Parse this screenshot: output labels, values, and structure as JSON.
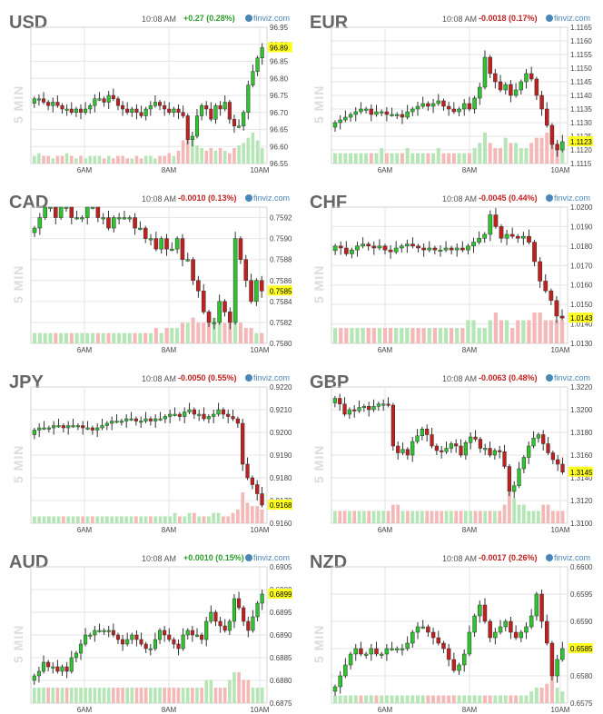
{
  "vertical_label": "5 MIN",
  "time": "10:08 AM",
  "watermark": "finviz.com",
  "colors": {
    "up": "#2ec42e",
    "down": "#c21f1f",
    "vol_up": "#b5e6b5",
    "vol_down": "#f5b8b8",
    "grid": "#e6e6e6",
    "highlight": "#ffff22"
  },
  "chart_data": [
    {
      "type": "candlestick",
      "symbol": "USD",
      "change": "+0.27 (0.28%)",
      "direction": "up",
      "ylim": [
        96.55,
        96.95
      ],
      "yticks": [
        "96.55",
        "96.60",
        "96.65",
        "96.70",
        "96.75",
        "96.80",
        "96.85",
        "96.90",
        "96.95"
      ],
      "xticks": [
        "6AM",
        "8AM",
        "10AM"
      ],
      "last": "96.89",
      "close": [
        96.74,
        96.74,
        96.73,
        96.72,
        96.73,
        96.72,
        96.71,
        96.71,
        96.7,
        96.71,
        96.7,
        96.71,
        96.72,
        96.74,
        96.74,
        96.73,
        96.75,
        96.74,
        96.72,
        96.71,
        96.7,
        96.71,
        96.7,
        96.69,
        96.71,
        96.72,
        96.73,
        96.72,
        96.71,
        96.7,
        96.71,
        96.7,
        96.69,
        96.62,
        96.63,
        96.69,
        96.72,
        96.71,
        96.68,
        96.72,
        96.71,
        96.73,
        96.68,
        96.66,
        96.66,
        96.7,
        96.78,
        96.82,
        96.86,
        96.89
      ],
      "volume": [
        3,
        4,
        3,
        3,
        2,
        3,
        3,
        4,
        3,
        2,
        3,
        2,
        3,
        3,
        3,
        2,
        3,
        2,
        3,
        3,
        2,
        2,
        3,
        2,
        3,
        3,
        2,
        3,
        3,
        4,
        3,
        5,
        9,
        11,
        10,
        7,
        6,
        5,
        6,
        5,
        6,
        5,
        4,
        6,
        7,
        8,
        10,
        12,
        9,
        6
      ]
    },
    {
      "type": "candlestick",
      "symbol": "EUR",
      "change": "-0.0018 (0.17%)",
      "direction": "down",
      "ylim": [
        1.1115,
        1.1165
      ],
      "yticks": [
        "1.1115",
        "1.1120",
        "1.1125",
        "1.1130",
        "1.1135",
        "1.1140",
        "1.1145",
        "1.1150",
        "1.1155",
        "1.1160",
        "1.1165"
      ],
      "xticks": [
        "6AM",
        "8AM",
        "10AM"
      ],
      "last": "1.1123",
      "close": [
        1.113,
        1.1131,
        1.1132,
        1.1133,
        1.1134,
        1.1135,
        1.1135,
        1.1133,
        1.1134,
        1.1134,
        1.1133,
        1.1133,
        1.1133,
        1.1132,
        1.1134,
        1.1135,
        1.1136,
        1.1137,
        1.1136,
        1.1137,
        1.1138,
        1.1136,
        1.1135,
        1.1134,
        1.1135,
        1.1137,
        1.1135,
        1.1139,
        1.1143,
        1.1154,
        1.1148,
        1.1145,
        1.1142,
        1.1144,
        1.114,
        1.1142,
        1.1145,
        1.1148,
        1.1146,
        1.114,
        1.1135,
        1.1129,
        1.1122,
        1.112,
        1.1123
      ],
      "volume": [
        2,
        2,
        2,
        2,
        2,
        2,
        2,
        2,
        2,
        3,
        2,
        2,
        2,
        2,
        3,
        2,
        2,
        2,
        2,
        2,
        3,
        2,
        2,
        2,
        2,
        2,
        2,
        3,
        4,
        6,
        4,
        3,
        3,
        5,
        4,
        4,
        3,
        3,
        4,
        5,
        5,
        6,
        6,
        4,
        3
      ]
    },
    {
      "type": "candlestick",
      "symbol": "CAD",
      "change": "-0.0010 (0.13%)",
      "direction": "down",
      "ylim": [
        0.758,
        0.7593
      ],
      "yticks": [
        "0.7580",
        "0.7582",
        "0.7584",
        "0.7586",
        "0.7588",
        "0.7590",
        "0.7592"
      ],
      "xticks": [
        "6AM",
        "8AM",
        "10AM"
      ],
      "last": "0.7585",
      "close": [
        0.7591,
        0.7592,
        0.7593,
        0.7593,
        0.7592,
        0.7593,
        0.7593,
        0.7592,
        0.7592,
        0.7592,
        0.7593,
        0.7593,
        0.7592,
        0.7592,
        0.7591,
        0.7592,
        0.7592,
        0.7592,
        0.7592,
        0.7591,
        0.7591,
        0.759,
        0.759,
        0.7589,
        0.759,
        0.7589,
        0.7589,
        0.759,
        0.7588,
        0.7588,
        0.7586,
        0.7585,
        0.7583,
        0.7582,
        0.7582,
        0.7584,
        0.7583,
        0.7582,
        0.759,
        0.7588,
        0.7586,
        0.7584,
        0.7586,
        0.7585
      ],
      "volume": [
        2,
        2,
        2,
        2,
        2,
        2,
        2,
        2,
        2,
        2,
        2,
        2,
        2,
        2,
        2,
        2,
        2,
        2,
        2,
        2,
        2,
        2,
        2,
        3,
        2,
        3,
        3,
        3,
        4,
        4,
        5,
        4,
        4,
        5,
        5,
        4,
        4,
        5,
        6,
        4,
        3,
        3,
        2,
        2
      ]
    },
    {
      "type": "candlestick",
      "symbol": "CHF",
      "change": "-0.0045 (0.44%)",
      "direction": "down",
      "ylim": [
        1.013,
        1.02
      ],
      "yticks": [
        "1.0130",
        "1.0140",
        "1.0150",
        "1.0160",
        "1.0170",
        "1.0180",
        "1.0190",
        "1.0200"
      ],
      "xticks": [
        "6AM",
        "8AM",
        "10AM"
      ],
      "last": "1.0143",
      "close": [
        1.018,
        1.0179,
        1.0176,
        1.0178,
        1.018,
        1.0181,
        1.018,
        1.0179,
        1.018,
        1.0178,
        1.0177,
        1.0179,
        1.018,
        1.0181,
        1.018,
        1.0179,
        1.0178,
        1.0179,
        1.0178,
        1.0178,
        1.0179,
        1.0178,
        1.0179,
        1.0178,
        1.018,
        1.0182,
        1.0184,
        1.0186,
        1.0196,
        1.019,
        1.0184,
        1.0186,
        1.0185,
        1.0184,
        1.0185,
        1.0182,
        1.0172,
        1.0162,
        1.0157,
        1.0152,
        1.0144,
        1.0143
      ],
      "volume": [
        2,
        2,
        2,
        2,
        2,
        2,
        2,
        2,
        2,
        2,
        2,
        2,
        2,
        2,
        2,
        2,
        2,
        2,
        2,
        2,
        2,
        2,
        2,
        2,
        3,
        3,
        2,
        2,
        3,
        4,
        3,
        3,
        2,
        3,
        3,
        3,
        4,
        4,
        3,
        3,
        3,
        3
      ]
    },
    {
      "type": "candlestick",
      "symbol": "JPY",
      "change": "-0.0050 (0.55%)",
      "direction": "down",
      "ylim": [
        0.916,
        0.922
      ],
      "yticks": [
        "0.9160",
        "0.9170",
        "0.9180",
        "0.9190",
        "0.9200",
        "0.9210",
        "0.9220"
      ],
      "xticks": [
        "6AM",
        "8AM",
        "10AM"
      ],
      "last": "0.9168",
      "close": [
        0.9201,
        0.9202,
        0.9202,
        0.9202,
        0.9203,
        0.9203,
        0.9202,
        0.9203,
        0.9203,
        0.9203,
        0.9202,
        0.9202,
        0.9201,
        0.9202,
        0.9203,
        0.9204,
        0.9205,
        0.9205,
        0.9205,
        0.9206,
        0.9206,
        0.9205,
        0.9205,
        0.9206,
        0.9205,
        0.9206,
        0.9206,
        0.9207,
        0.9208,
        0.9208,
        0.9207,
        0.9209,
        0.921,
        0.9208,
        0.9208,
        0.9206,
        0.9207,
        0.9208,
        0.921,
        0.9208,
        0.9207,
        0.9206,
        0.9204,
        0.9186,
        0.918,
        0.9177,
        0.9173,
        0.9168
      ],
      "volume": [
        2,
        2,
        2,
        2,
        2,
        2,
        2,
        2,
        2,
        2,
        2,
        2,
        2,
        2,
        2,
        2,
        2,
        2,
        2,
        2,
        2,
        2,
        2,
        2,
        2,
        2,
        2,
        2,
        2,
        3,
        2,
        2,
        3,
        3,
        2,
        2,
        2,
        3,
        3,
        2,
        2,
        3,
        4,
        9,
        6,
        5,
        5,
        4
      ]
    },
    {
      "type": "candlestick",
      "symbol": "GBP",
      "change": "-0.0063 (0.48%)",
      "direction": "down",
      "ylim": [
        1.31,
        1.322
      ],
      "yticks": [
        "1.3100",
        "1.3120",
        "1.3140",
        "1.3160",
        "1.3180",
        "1.3200",
        "1.3220"
      ],
      "xticks": [
        "6AM",
        "8AM",
        "10AM"
      ],
      "last": "1.3145",
      "close": [
        1.321,
        1.3205,
        1.3196,
        1.32,
        1.3199,
        1.3202,
        1.3203,
        1.32,
        1.3203,
        1.3205,
        1.3205,
        1.3204,
        1.3168,
        1.3162,
        1.3165,
        1.316,
        1.3172,
        1.3177,
        1.3183,
        1.3178,
        1.3168,
        1.3164,
        1.3163,
        1.3166,
        1.317,
        1.3168,
        1.316,
        1.3171,
        1.3176,
        1.3174,
        1.3166,
        1.3166,
        1.316,
        1.3164,
        1.3163,
        1.315,
        1.3128,
        1.3133,
        1.3148,
        1.3158,
        1.3168,
        1.3175,
        1.3178,
        1.317,
        1.3162,
        1.3156,
        1.3152,
        1.3145
      ],
      "volume": [
        2,
        2,
        2,
        2,
        2,
        2,
        2,
        2,
        2,
        2,
        2,
        2,
        3,
        3,
        2,
        2,
        2,
        2,
        2,
        2,
        2,
        2,
        2,
        2,
        2,
        2,
        2,
        2,
        2,
        2,
        2,
        2,
        2,
        2,
        2,
        3,
        5,
        4,
        3,
        3,
        2,
        2,
        2,
        3,
        3,
        2,
        2,
        2
      ]
    },
    {
      "type": "candlestick",
      "symbol": "AUD",
      "change": "+0.0010 (0.15%)",
      "direction": "up",
      "ylim": [
        0.6875,
        0.6905
      ],
      "yticks": [
        "0.6875",
        "0.6880",
        "0.6885",
        "0.6890",
        "0.6895",
        "0.6900",
        "0.6905"
      ],
      "xticks": [
        "6AM",
        "8AM",
        "10AM"
      ],
      "last": "0.6899",
      "close": [
        0.6881,
        0.6882,
        0.6884,
        0.6883,
        0.6883,
        0.6882,
        0.6883,
        0.6882,
        0.6885,
        0.6886,
        0.6888,
        0.689,
        0.689,
        0.6891,
        0.6891,
        0.6891,
        0.6891,
        0.689,
        0.6889,
        0.6888,
        0.6889,
        0.689,
        0.6889,
        0.6888,
        0.6887,
        0.6887,
        0.6889,
        0.6891,
        0.689,
        0.6889,
        0.6888,
        0.6887,
        0.689,
        0.6891,
        0.689,
        0.689,
        0.6889,
        0.6893,
        0.6895,
        0.6893,
        0.6892,
        0.6891,
        0.6893,
        0.6898,
        0.6896,
        0.6893,
        0.6891,
        0.6894,
        0.6897,
        0.6899
      ],
      "volume": [
        2,
        2,
        2,
        2,
        2,
        2,
        2,
        2,
        2,
        2,
        2,
        2,
        2,
        2,
        2,
        2,
        2,
        2,
        2,
        2,
        2,
        2,
        2,
        2,
        2,
        2,
        2,
        2,
        2,
        2,
        2,
        2,
        2,
        2,
        2,
        2,
        2,
        3,
        3,
        2,
        2,
        2,
        3,
        4,
        4,
        3,
        3,
        2,
        2,
        2
      ]
    },
    {
      "type": "candlestick",
      "symbol": "NZD",
      "change": "-0.0017 (0.26%)",
      "direction": "down",
      "ylim": [
        0.6575,
        0.66
      ],
      "yticks": [
        "0.6575",
        "0.6580",
        "0.6585",
        "0.6590",
        "0.6595",
        "0.6600"
      ],
      "xticks": [
        "6AM",
        "8AM",
        "10AM"
      ],
      "last": "0.6585",
      "close": [
        0.6578,
        0.658,
        0.6582,
        0.6584,
        0.6585,
        0.6584,
        0.6584,
        0.6585,
        0.6584,
        0.6584,
        0.6585,
        0.6585,
        0.6585,
        0.6585,
        0.6586,
        0.6588,
        0.6589,
        0.6589,
        0.6588,
        0.6587,
        0.6586,
        0.6585,
        0.6583,
        0.6581,
        0.6582,
        0.6584,
        0.6588,
        0.6591,
        0.6593,
        0.659,
        0.6587,
        0.6588,
        0.6589,
        0.659,
        0.6588,
        0.6587,
        0.6588,
        0.6589,
        0.6591,
        0.6595,
        0.659,
        0.6586,
        0.658,
        0.6583,
        0.6585
      ],
      "volume": [
        2,
        2,
        2,
        2,
        2,
        2,
        2,
        2,
        2,
        2,
        2,
        2,
        2,
        2,
        2,
        2,
        2,
        2,
        2,
        2,
        2,
        2,
        2,
        2,
        2,
        2,
        2,
        2,
        2,
        2,
        2,
        2,
        2,
        2,
        2,
        2,
        2,
        2,
        3,
        4,
        4,
        5,
        8,
        4,
        3
      ]
    }
  ]
}
